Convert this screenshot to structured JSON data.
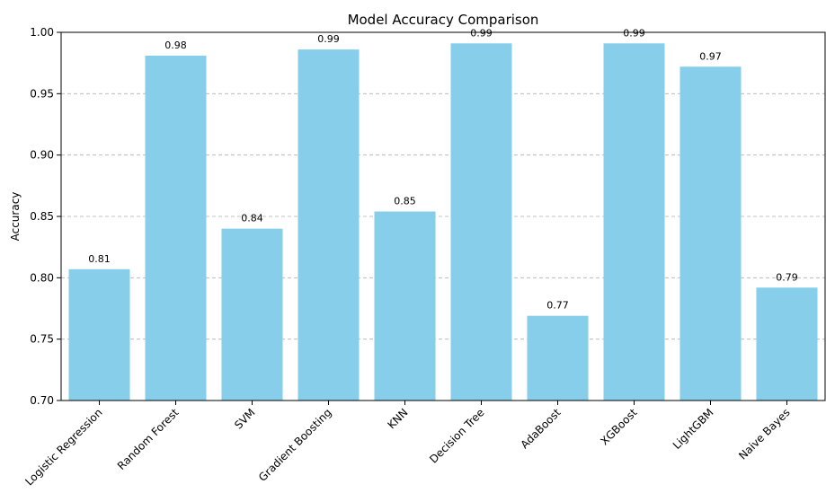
{
  "chart_data": {
    "type": "bar",
    "title": "Model Accuracy Comparison",
    "xlabel": "",
    "ylabel": "Accuracy",
    "categories": [
      "Logistic Regression",
      "Random Forest",
      "SVM",
      "Gradient Boosting",
      "KNN",
      "Decision Tree",
      "AdaBoost",
      "XGBoost",
      "LightGBM",
      "Naive Bayes"
    ],
    "values": [
      0.807,
      0.981,
      0.84,
      0.986,
      0.854,
      0.991,
      0.769,
      0.991,
      0.972,
      0.792
    ],
    "data_labels": [
      "0.81",
      "0.98",
      "0.84",
      "0.99",
      "0.85",
      "0.99",
      "0.77",
      "0.99",
      "0.97",
      "0.79"
    ],
    "ylim": [
      0.7,
      1.0
    ],
    "yticks": [
      "0.70",
      "0.75",
      "0.80",
      "0.85",
      "0.90",
      "0.95",
      "1.00"
    ],
    "grid": "y-dashed",
    "bar_color": "#87CEEB"
  }
}
